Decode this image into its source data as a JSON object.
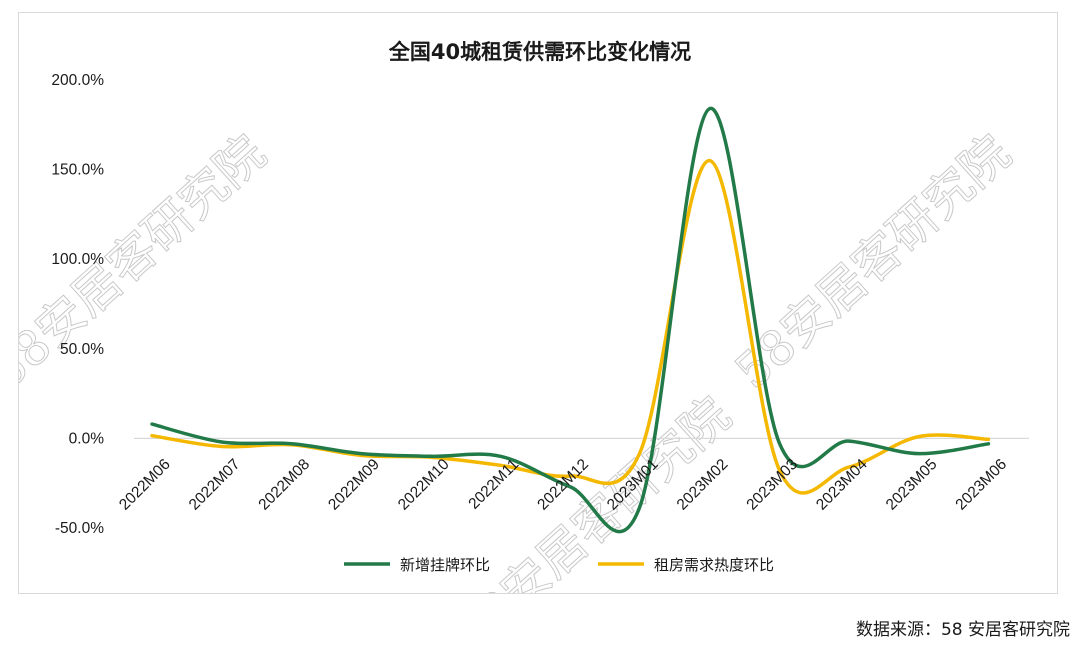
{
  "chart_data": {
    "type": "line",
    "title": "全国40城租赁供需环比变化情况",
    "categories": [
      "2022M06",
      "2022M07",
      "2022M08",
      "2022M09",
      "2022M10",
      "2022M11",
      "2022M12",
      "2023M01",
      "2023M02",
      "2023M03",
      "2023M04",
      "2023M05",
      "2023M06"
    ],
    "series": [
      {
        "name": "新增挂牌环比",
        "color": "#227a48",
        "values": [
          8.0,
          -2.0,
          -3.0,
          -8.5,
          -10.0,
          -10.0,
          -27.0,
          -38.0,
          184.0,
          -2.5,
          -1.5,
          -8.5,
          -3.0
        ]
      },
      {
        "name": "租房需求热度环比",
        "color": "#f5b800",
        "values": [
          1.5,
          -4.5,
          -3.5,
          -9.5,
          -10.5,
          -15.0,
          -21.0,
          -8.0,
          155.0,
          -17.5,
          -16.0,
          1.0,
          -0.5
        ]
      }
    ],
    "ylim": [
      -50,
      200
    ],
    "yticks": [
      "-50.0%",
      "0.0%",
      "50.0%",
      "100.0%",
      "150.0%",
      "200.0%"
    ],
    "grid": false,
    "legend_position": "bottom"
  },
  "watermark": "58安居客研究院",
  "source": "数据来源：58 安居客研究院"
}
